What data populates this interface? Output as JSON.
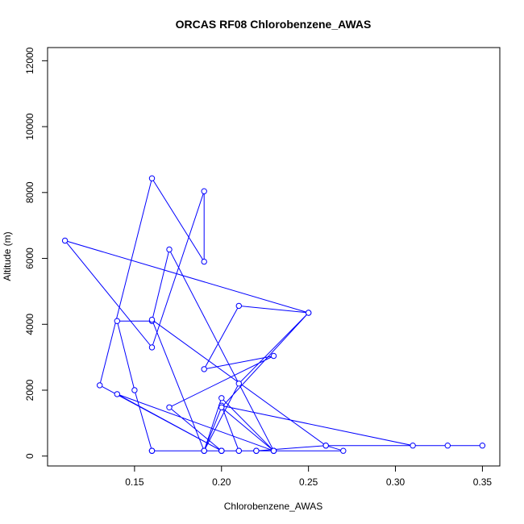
{
  "chart_data": {
    "type": "line",
    "title": "ORCAS RF08 Chlorobenzene_AWAS",
    "xlabel": "Chlorobenzene_AWAS",
    "ylabel": "Altitude (m)",
    "xlim": [
      0.1,
      0.36
    ],
    "ylim": [
      -300,
      12400
    ],
    "xticks": [
      0.15,
      0.2,
      0.25,
      0.3,
      0.35
    ],
    "xtick_labels": [
      "0.15",
      "0.20",
      "0.25",
      "0.30",
      "0.35"
    ],
    "yticks": [
      0,
      2000,
      4000,
      6000,
      8000,
      10000,
      12000
    ],
    "ytick_labels": [
      "0",
      "2000",
      "4000",
      "6000",
      "8000",
      "10000",
      "12000"
    ],
    "grid": false,
    "series": [
      {
        "color": "#0000ff",
        "marker": "open-circle",
        "x": [
          0.2,
          0.21,
          0.22,
          0.23,
          0.22,
          0.2,
          0.19,
          0.16,
          0.15,
          0.14,
          0.16,
          0.17,
          0.23,
          0.2,
          0.19,
          0.2,
          0.23,
          0.21,
          0.2,
          0.31,
          0.35,
          0.33,
          0.26,
          0.22,
          0.2,
          0.19,
          0.21,
          0.25,
          0.2,
          0.19,
          0.16,
          0.26,
          0.27,
          0.2,
          0.13,
          0.16,
          0.19,
          0.19,
          0.16,
          0.11,
          0.25,
          0.21,
          0.19,
          0.23,
          0.17,
          0.2,
          0.14,
          0.23,
          0.2,
          0.16,
          0.16
        ],
        "y": [
          160,
          160,
          160,
          160,
          160,
          160,
          160,
          160,
          2000,
          4100,
          4100,
          6270,
          160,
          1480,
          160,
          1760,
          160,
          160,
          1530,
          320,
          320,
          320,
          320,
          160,
          160,
          160,
          2200,
          4350,
          1480,
          160,
          4140,
          320,
          160,
          160,
          2150,
          8430,
          5900,
          8040,
          3300,
          6540,
          4350,
          4560,
          2640,
          3040,
          1480,
          160,
          1880,
          160,
          160,
          160,
          160
        ]
      }
    ]
  }
}
